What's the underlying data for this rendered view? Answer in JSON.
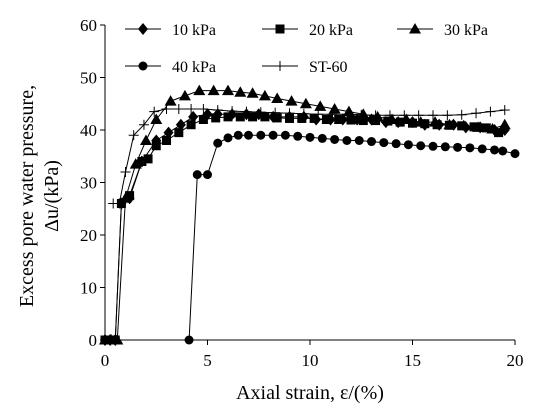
{
  "chart_data": {
    "type": "line",
    "xlabel": "Axial strain, ε/(%)",
    "ylabel_line1": "Excess pore water pressure,",
    "ylabel_line2": "Δu/(kPa)",
    "xlim": [
      0,
      20
    ],
    "ylim": [
      0,
      60
    ],
    "xticks": [
      0,
      5,
      10,
      15,
      20
    ],
    "yticks": [
      0,
      10,
      20,
      30,
      40,
      50,
      60
    ],
    "grid": false,
    "legend_position": "top",
    "series": [
      {
        "name": "10 kPa",
        "marker": "diamond",
        "x": [
          0,
          0.25,
          0.5,
          0.8,
          1.2,
          1.8,
          2.5,
          3.1,
          3.7,
          4.3,
          5.0,
          5.5,
          6.2,
          6.9,
          7.5,
          8.2,
          9.0,
          9.7,
          10.3,
          11.0,
          11.6,
          12.3,
          13.0,
          13.7,
          14.3,
          15.0,
          15.6,
          16.3,
          17.0,
          17.6,
          18.3,
          19.0,
          19.5
        ],
        "y": [
          0,
          0,
          0,
          26,
          27,
          34,
          38,
          39.5,
          41,
          42.5,
          43,
          43,
          43,
          43,
          43,
          42.5,
          42.5,
          42.5,
          42,
          42,
          42,
          42,
          42,
          41.5,
          41.5,
          41.5,
          41,
          41,
          41,
          40.5,
          40.5,
          40,
          40
        ]
      },
      {
        "name": "20 kPa",
        "marker": "square",
        "x": [
          0,
          0.25,
          0.5,
          0.8,
          1.2,
          1.8,
          2.1,
          2.5,
          3.0,
          3.6,
          4.2,
          4.8,
          5.4,
          6.0,
          6.6,
          7.2,
          7.8,
          8.4,
          9.0,
          9.6,
          10.2,
          10.8,
          11.4,
          12.0,
          12.6,
          13.2,
          13.8,
          14.4,
          15.0,
          15.6,
          16.2,
          16.8,
          17.4,
          18.0,
          18.6,
          19.2
        ],
        "y": [
          0,
          0,
          0,
          26,
          27.5,
          34,
          34.5,
          37,
          38,
          39.5,
          41,
          42,
          42.3,
          42.5,
          42.5,
          42.5,
          42.5,
          42.3,
          42.2,
          42.2,
          42.2,
          42,
          42,
          41.9,
          41.8,
          41.8,
          41.7,
          41.5,
          41.3,
          41.2,
          41,
          40.9,
          40.8,
          40.6,
          40.4,
          39.5
        ]
      },
      {
        "name": "30 kPa",
        "marker": "triangle",
        "x": [
          0,
          0.3,
          0.6,
          1.0,
          1.5,
          2.0,
          2.5,
          3.2,
          3.9,
          4.6,
          5.3,
          6.0,
          6.6,
          7.2,
          7.8,
          8.4,
          9.1,
          9.8,
          10.5,
          11.2,
          11.9,
          12.6,
          13.3,
          14.0,
          14.7,
          15.4,
          16.1,
          16.8,
          17.5,
          18.2,
          18.9,
          19.5
        ],
        "y": [
          0,
          0,
          0,
          27,
          33.5,
          38,
          42,
          45.5,
          46.5,
          47.5,
          47.5,
          47.5,
          47.2,
          47,
          46.5,
          46,
          45.5,
          45,
          44.5,
          44,
          43.5,
          43,
          42.5,
          42,
          42,
          41.5,
          41.5,
          41,
          40.8,
          40.5,
          40.2,
          41
        ]
      },
      {
        "name": "40 kPa",
        "marker": "circle",
        "x": [
          4.1,
          4.5,
          5.0,
          5.5,
          6.0,
          6.5,
          7.0,
          7.6,
          8.2,
          8.8,
          9.4,
          10.0,
          10.6,
          11.2,
          11.8,
          12.4,
          13.0,
          13.6,
          14.2,
          14.8,
          15.4,
          16.0,
          16.6,
          17.2,
          17.8,
          18.4,
          19.0,
          19.4,
          20.0
        ],
        "y": [
          0,
          31.5,
          31.5,
          37.5,
          38.5,
          39,
          39,
          39,
          39,
          39,
          38.8,
          38.6,
          38.4,
          38.2,
          38,
          38,
          37.8,
          37.6,
          37.4,
          37.2,
          37,
          36.9,
          36.8,
          36.7,
          36.6,
          36.4,
          36.2,
          36,
          35.5
        ]
      },
      {
        "name": "ST-60",
        "marker": "plus",
        "x": [
          0.4,
          0.7,
          1.0,
          1.4,
          1.9,
          2.4,
          3.0,
          3.6,
          4.2,
          4.8,
          5.5,
          6.2,
          6.9,
          7.6,
          8.3,
          9.0,
          9.7,
          10.4,
          11.1,
          11.8,
          12.5,
          13.2,
          13.9,
          14.6,
          15.3,
          16.0,
          16.7,
          17.4,
          18.1,
          18.8,
          19.5
        ],
        "y": [
          26,
          26,
          32,
          39,
          41,
          43.5,
          44,
          44,
          44,
          44,
          43.8,
          43.6,
          43.5,
          43.4,
          43.3,
          43.2,
          43.1,
          43,
          43,
          43,
          42.9,
          42.8,
          42.8,
          42.8,
          42.8,
          42.8,
          42.8,
          42.9,
          43.2,
          43.5,
          43.8
        ]
      }
    ]
  }
}
